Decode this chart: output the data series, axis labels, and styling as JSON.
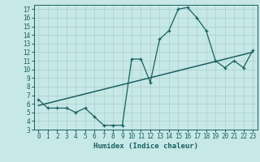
{
  "xlabel": "Humidex (Indice chaleur)",
  "ylabel": "",
  "bg_color": "#c6e8e6",
  "grid_color": "#aacfcc",
  "line_color": "#1a6060",
  "xlim": [
    -0.5,
    23.5
  ],
  "ylim": [
    3,
    17.5
  ],
  "xticks": [
    0,
    1,
    2,
    3,
    4,
    5,
    6,
    7,
    8,
    9,
    10,
    11,
    12,
    13,
    14,
    15,
    16,
    17,
    18,
    19,
    20,
    21,
    22,
    23
  ],
  "yticks": [
    3,
    4,
    5,
    6,
    7,
    8,
    9,
    10,
    11,
    12,
    13,
    14,
    15,
    16,
    17
  ],
  "main_x": [
    0,
    1,
    2,
    3,
    4,
    5,
    6,
    7,
    8,
    9,
    10,
    11,
    12,
    13,
    14,
    15,
    16,
    17,
    18,
    19,
    20,
    21,
    22,
    23
  ],
  "main_y": [
    6.5,
    5.5,
    5.5,
    5.5,
    5.0,
    5.5,
    4.5,
    3.5,
    3.5,
    3.5,
    11.2,
    11.2,
    8.5,
    13.5,
    14.5,
    17.0,
    17.2,
    16.0,
    14.5,
    11.0,
    10.2,
    11.0,
    10.2,
    12.2
  ],
  "trend_x": [
    0,
    23
  ],
  "trend_y": [
    5.8,
    12.0
  ],
  "fontsize_label": 6.5,
  "fontsize_tick": 5.5
}
